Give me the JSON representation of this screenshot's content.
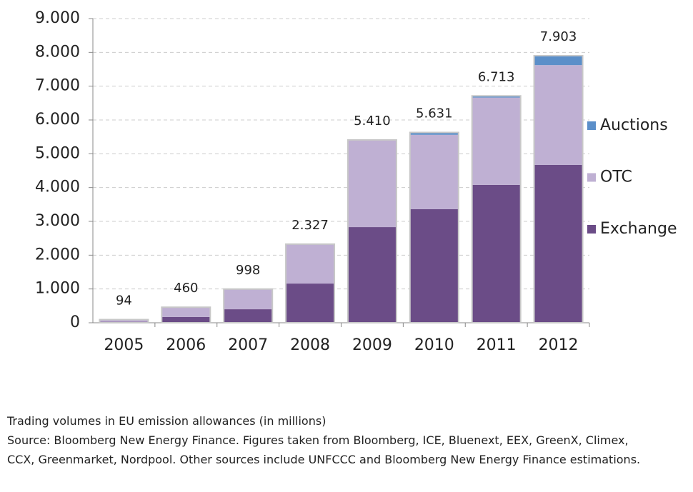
{
  "chart_data": {
    "type": "stacked_bar",
    "categories": [
      "2005",
      "2006",
      "2007",
      "2008",
      "2009",
      "2010",
      "2011",
      "2012"
    ],
    "series": [
      {
        "name": "Exchange",
        "color": "#6b4c87",
        "values": [
          30,
          170,
          400,
          1160,
          2830,
          3360,
          4080,
          4670
        ]
      },
      {
        "name": "OTC",
        "color": "#bfb0d3",
        "values": [
          64,
          290,
          598,
          1167,
          2580,
          2201,
          2583,
          2953
        ]
      },
      {
        "name": "Auctions",
        "color": "#5b8fc9",
        "values": [
          0,
          0,
          0,
          0,
          0,
          70,
          50,
          280
        ]
      }
    ],
    "totals": {
      "values": [
        94,
        460,
        998,
        2327,
        5410,
        5631,
        6713,
        7903
      ],
      "value_labels": [
        "94",
        "460",
        "998",
        "2.327",
        "5.410",
        "5.631",
        "6.713",
        "7.903"
      ]
    },
    "ylim": [
      0,
      9000
    ],
    "yticks": [
      0,
      {
        "value": 1000,
        "label": "1.000"
      },
      {
        "value": 2000,
        "label": "2.000"
      },
      {
        "value": 3000,
        "label": "3.000"
      },
      {
        "value": 4000,
        "label": "4.000"
      },
      {
        "value": 5000,
        "label": "5.000"
      },
      {
        "value": 6000,
        "label": "6.000"
      },
      {
        "value": 7000,
        "label": "7.000"
      },
      {
        "value": 8000,
        "label": "8.000"
      },
      {
        "value": 9000,
        "label": "9.000"
      }
    ],
    "grid": true,
    "legend": "right"
  },
  "caption": {
    "title": "Trading volumes in EU emission allowances (in millions)",
    "source": "Source: Bloomberg New Energy Finance. Figures taken from Bloomberg, ICE, Bluenext, EEX, GreenX, Climex, CCX, Greenmarket, Nordpool. Other sources include UNFCCC and Bloomberg New Energy Finance estimations."
  }
}
